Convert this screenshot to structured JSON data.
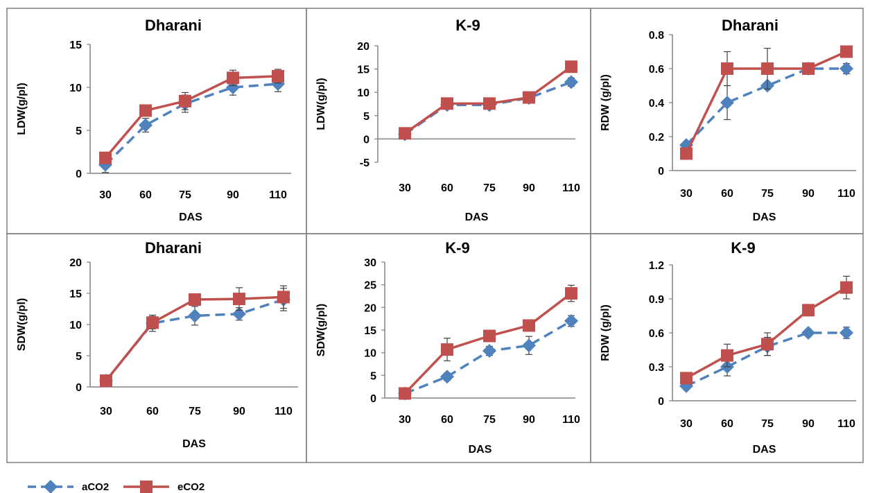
{
  "legend": [
    {
      "name": "aCO2",
      "color": "#4F81BD",
      "marker": "diamond",
      "dash": true
    },
    {
      "name": "eCO2",
      "color": "#C0504D",
      "marker": "square",
      "dash": false
    }
  ],
  "chart_data": [
    {
      "type": "line",
      "title": "Dharani",
      "xlabel": "DAS",
      "ylabel": "LDW(g/pl)",
      "categories": [
        "30",
        "60",
        "75",
        "90",
        "110"
      ],
      "ylim": [
        0,
        15
      ],
      "yticks": [
        "0",
        "5",
        "10",
        "15"
      ],
      "series": [
        {
          "name": "aCO2",
          "values": [
            1.0,
            5.6,
            8.1,
            10.0,
            10.4
          ],
          "errors": [
            0.9,
            0.8,
            1.0,
            0.9,
            0.9
          ]
        },
        {
          "name": "eCO2",
          "values": [
            1.8,
            7.3,
            8.4,
            11.1,
            11.3
          ],
          "errors": [
            0.6,
            0.6,
            1.0,
            0.9,
            0.8
          ]
        }
      ]
    },
    {
      "type": "line",
      "title": "K-9",
      "xlabel": "DAS",
      "ylabel": "LDW(g/pl)",
      "categories": [
        "30",
        "60",
        "75",
        "90",
        "110"
      ],
      "ylim": [
        -5,
        20
      ],
      "yticks": [
        "-5",
        "0",
        "5",
        "10",
        "15",
        "20"
      ],
      "series": [
        {
          "name": "aCO2",
          "values": [
            1.0,
            7.3,
            7.3,
            8.8,
            12.2
          ],
          "errors": [
            0.4,
            0.6,
            0.6,
            0.6,
            0.9
          ]
        },
        {
          "name": "eCO2",
          "values": [
            1.2,
            7.6,
            7.6,
            8.9,
            15.5
          ],
          "errors": [
            0.4,
            0.6,
            0.6,
            0.6,
            0.7
          ]
        }
      ]
    },
    {
      "type": "line",
      "title": "Dharani",
      "xlabel": "DAS",
      "ylabel": "RDW (g/pl)",
      "categories": [
        "30",
        "60",
        "75",
        "90",
        "110"
      ],
      "ylim": [
        0,
        0.8
      ],
      "yticks": [
        "0",
        "0.2",
        "0.4",
        "0.6",
        "0.8"
      ],
      "series": [
        {
          "name": "aCO2",
          "values": [
            0.15,
            0.4,
            0.5,
            0.6,
            0.6
          ],
          "errors": [
            0.02,
            0.1,
            0.02,
            0.02,
            0.03
          ]
        },
        {
          "name": "eCO2",
          "values": [
            0.1,
            0.6,
            0.6,
            0.6,
            0.7
          ],
          "errors": [
            0.02,
            0.1,
            0.12,
            0.02,
            0.03
          ]
        }
      ]
    },
    {
      "type": "line",
      "title": "Dharani",
      "xlabel": "DAS",
      "ylabel": "SDW(g/pl)",
      "categories": [
        "30",
        "60",
        "75",
        "90",
        "110"
      ],
      "ylim": [
        0,
        20
      ],
      "yticks": [
        "0",
        "5",
        "10",
        "15",
        "20"
      ],
      "series": [
        {
          "name": "aCO2",
          "values": [
            1.0,
            10.2,
            11.4,
            11.7,
            14.0
          ],
          "errors": [
            0.3,
            1.3,
            1.5,
            1.0,
            1.8
          ]
        },
        {
          "name": "eCO2",
          "values": [
            1.0,
            10.3,
            14.0,
            14.1,
            14.4
          ],
          "errors": [
            0.3,
            1.0,
            0.6,
            1.8,
            1.8
          ]
        }
      ]
    },
    {
      "type": "line",
      "title": "K-9",
      "xlabel": "DAS",
      "ylabel": "SDW(g/pl)",
      "categories": [
        "30",
        "60",
        "75",
        "90",
        "110"
      ],
      "ylim": [
        0,
        30
      ],
      "yticks": [
        "0",
        "5",
        "10",
        "15",
        "20",
        "25",
        "30"
      ],
      "series": [
        {
          "name": "aCO2",
          "values": [
            1.0,
            4.7,
            10.4,
            11.6,
            17.0
          ],
          "errors": [
            0.5,
            0.8,
            1.0,
            2.0,
            1.2
          ]
        },
        {
          "name": "eCO2",
          "values": [
            1.0,
            10.7,
            13.7,
            16.0,
            23.1
          ],
          "errors": [
            0.5,
            2.5,
            1.0,
            1.0,
            1.8
          ]
        }
      ]
    },
    {
      "type": "line",
      "title": "K-9",
      "xlabel": "DAS",
      "ylabel": "RDW (g/pl)",
      "categories": [
        "30",
        "60",
        "75",
        "90",
        "110"
      ],
      "ylim": [
        0,
        1.2
      ],
      "yticks": [
        "0",
        "0.3",
        "0.6",
        "0.9",
        "1.2"
      ],
      "series": [
        {
          "name": "aCO2",
          "values": [
            0.13,
            0.3,
            0.48,
            0.6,
            0.6
          ],
          "errors": [
            0.03,
            0.08,
            0.08,
            0.03,
            0.05
          ]
        },
        {
          "name": "eCO2",
          "values": [
            0.2,
            0.4,
            0.5,
            0.8,
            1.0
          ],
          "errors": [
            0.03,
            0.1,
            0.1,
            0.05,
            0.1
          ]
        }
      ]
    }
  ]
}
